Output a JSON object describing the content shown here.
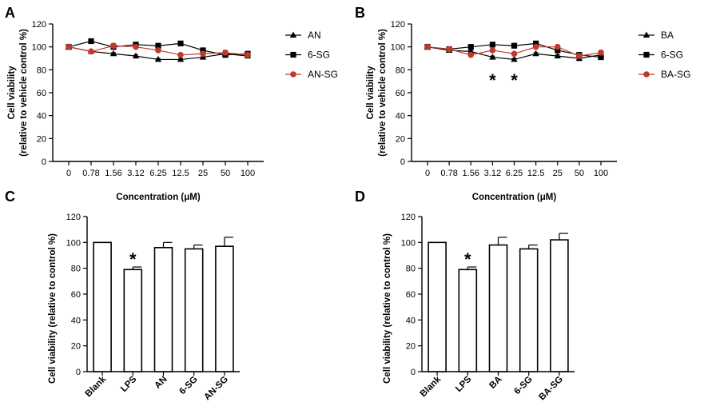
{
  "chart_data": [
    {
      "panel": "A",
      "type": "line",
      "ylabel": "Cell viability\n(relative to  vehicle control %)",
      "xlabel": "Concentration (μM)",
      "categories": [
        "0",
        "0.78",
        "1.56",
        "3.12",
        "6.25",
        "12.5",
        "25",
        "50",
        "100"
      ],
      "ylim": [
        0,
        120
      ],
      "yticks": [
        0,
        20,
        40,
        60,
        80,
        100,
        120
      ],
      "legend_position": "right",
      "series": [
        {
          "name": "AN",
          "marker": "triangle",
          "color": "#000000",
          "values": [
            100,
            96,
            94,
            92,
            89,
            89,
            91,
            94,
            92
          ],
          "errors": [
            0,
            1,
            1,
            1,
            1,
            1,
            1,
            2,
            1
          ]
        },
        {
          "name": "6-SG",
          "marker": "square",
          "color": "#000000",
          "values": [
            100,
            105,
            100,
            102,
            101,
            103,
            97,
            93,
            94
          ],
          "errors": [
            0,
            1,
            1,
            1,
            1,
            1,
            1,
            2,
            1
          ]
        },
        {
          "name": "AN-SG",
          "marker": "circle",
          "color": "#c0392b",
          "values": [
            100,
            96,
            101,
            100,
            97,
            93,
            94,
            95,
            93
          ],
          "errors": [
            0,
            1,
            2,
            1,
            1,
            1,
            1,
            2,
            1
          ]
        }
      ],
      "annotations": []
    },
    {
      "panel": "B",
      "type": "line",
      "ylabel": "Cell viability\n(relative to  vehicle control %)",
      "xlabel": "Concentration (μM)",
      "categories": [
        "0",
        "0.78",
        "1.56",
        "3.12",
        "6.25",
        "12.5",
        "25",
        "50",
        "100"
      ],
      "ylim": [
        0,
        120
      ],
      "yticks": [
        0,
        20,
        40,
        60,
        80,
        100,
        120
      ],
      "legend_position": "right",
      "series": [
        {
          "name": "BA",
          "marker": "triangle",
          "color": "#000000",
          "values": [
            100,
            97,
            96,
            91,
            89,
            94,
            92,
            90,
            93
          ],
          "errors": [
            0,
            1,
            1,
            1,
            1,
            1,
            1,
            2,
            2
          ]
        },
        {
          "name": "6-SG",
          "marker": "square",
          "color": "#000000",
          "values": [
            100,
            98,
            100,
            102,
            101,
            103,
            97,
            93,
            91
          ],
          "errors": [
            0,
            1,
            1,
            1,
            1,
            1,
            1,
            2,
            2
          ]
        },
        {
          "name": "BA-SG",
          "marker": "circle",
          "color": "#c0392b",
          "values": [
            100,
            98,
            93,
            97,
            94,
            100,
            100,
            92,
            95
          ],
          "errors": [
            0,
            1,
            1,
            1,
            1,
            1,
            1,
            2,
            2
          ]
        }
      ],
      "annotations": [
        {
          "text": "*",
          "category": "3.12"
        },
        {
          "text": "*",
          "category": "6.25"
        }
      ]
    },
    {
      "panel": "C",
      "type": "bar",
      "ylabel": "Cell viability (relative to control %)",
      "categories": [
        "Blank",
        "LPS",
        "AN",
        "6-SG",
        "AN-SG"
      ],
      "values": [
        100,
        79,
        96,
        95,
        97
      ],
      "errors": [
        0,
        2,
        4,
        3,
        7
      ],
      "ylim": [
        0,
        120
      ],
      "yticks": [
        0,
        20,
        40,
        60,
        80,
        100,
        120
      ],
      "annotations": [
        {
          "text": "*",
          "category": "LPS"
        }
      ]
    },
    {
      "panel": "D",
      "type": "bar",
      "ylabel": "Cell viability (relative to control %)",
      "categories": [
        "Blank",
        "LPS",
        "BA",
        "6-SG",
        "BA-SG"
      ],
      "values": [
        100,
        79,
        98,
        95,
        102
      ],
      "errors": [
        0,
        2,
        6,
        3,
        5
      ],
      "ylim": [
        0,
        120
      ],
      "yticks": [
        0,
        20,
        40,
        60,
        80,
        100,
        120
      ],
      "annotations": [
        {
          "text": "*",
          "category": "LPS"
        }
      ]
    }
  ]
}
